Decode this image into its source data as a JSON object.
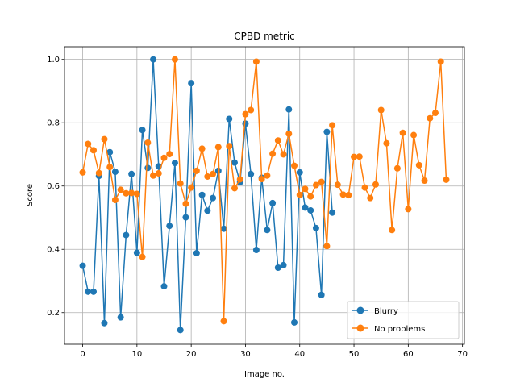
{
  "chart_data": {
    "type": "line",
    "title": "CPBD metric",
    "xlabel": "Image no.",
    "ylabel": "Score",
    "xlim": [
      -3.35,
      70.35
    ],
    "ylim": [
      0.1,
      1.04
    ],
    "xticks": [
      0,
      10,
      20,
      30,
      40,
      50,
      60,
      70
    ],
    "yticks": [
      0.2,
      0.4,
      0.6,
      0.8,
      1.0
    ],
    "xtick_labels": [
      "0",
      "10",
      "20",
      "30",
      "40",
      "50",
      "60",
      "70"
    ],
    "ytick_labels": [
      "0.2",
      "0.4",
      "0.6",
      "0.8",
      "1.0"
    ],
    "grid": true,
    "legend_position": "lower-right",
    "series": [
      {
        "name": "Blurry",
        "color": "#1f77b4",
        "x": [
          0,
          1,
          2,
          3,
          4,
          5,
          6,
          7,
          8,
          9,
          10,
          11,
          12,
          13,
          14,
          15,
          16,
          17,
          18,
          19,
          20,
          21,
          22,
          23,
          24,
          25,
          26,
          27,
          28,
          29,
          30,
          31,
          32,
          33,
          34,
          35,
          36,
          37,
          38,
          39,
          40,
          41,
          42,
          43,
          44,
          45,
          46
        ],
        "values": [
          0.348,
          0.266,
          0.266,
          0.632,
          0.167,
          0.707,
          0.645,
          0.185,
          0.445,
          0.638,
          0.389,
          0.777,
          0.657,
          1.0,
          0.662,
          0.283,
          0.474,
          0.673,
          0.145,
          0.501,
          0.925,
          0.388,
          0.572,
          0.522,
          0.562,
          0.648,
          0.465,
          0.812,
          0.674,
          0.612,
          0.797,
          0.638,
          0.398,
          0.626,
          0.461,
          0.546,
          0.342,
          0.35,
          0.842,
          0.169,
          0.643,
          0.532,
          0.523,
          0.467,
          0.256,
          0.771,
          0.516
        ]
      },
      {
        "name": "No problems",
        "color": "#ff7f0e",
        "x": [
          0,
          1,
          2,
          3,
          4,
          5,
          6,
          7,
          8,
          9,
          10,
          11,
          12,
          13,
          14,
          15,
          16,
          17,
          18,
          19,
          20,
          21,
          22,
          23,
          24,
          25,
          26,
          27,
          28,
          29,
          30,
          31,
          32,
          33,
          34,
          35,
          36,
          37,
          38,
          39,
          40,
          41,
          42,
          43,
          44,
          45,
          46,
          47,
          48,
          49,
          50,
          51,
          52,
          53,
          54,
          55,
          56,
          57,
          58,
          59,
          60,
          61,
          62,
          63,
          64,
          65,
          66,
          67
        ],
        "values": [
          0.643,
          0.733,
          0.713,
          0.641,
          0.748,
          0.66,
          0.556,
          0.588,
          0.577,
          0.578,
          0.575,
          0.376,
          0.737,
          0.633,
          0.64,
          0.689,
          0.701,
          1.0,
          0.608,
          0.544,
          0.595,
          0.648,
          0.718,
          0.63,
          0.638,
          0.723,
          0.173,
          0.726,
          0.593,
          0.621,
          0.827,
          0.84,
          0.993,
          0.622,
          0.633,
          0.702,
          0.744,
          0.7,
          0.765,
          0.664,
          0.572,
          0.591,
          0.567,
          0.603,
          0.613,
          0.41,
          0.792,
          0.604,
          0.573,
          0.571,
          0.692,
          0.693,
          0.595,
          0.562,
          0.605,
          0.84,
          0.735,
          0.461,
          0.656,
          0.768,
          0.527,
          0.761,
          0.666,
          0.617,
          0.814,
          0.831,
          0.993,
          0.62
        ]
      }
    ]
  }
}
